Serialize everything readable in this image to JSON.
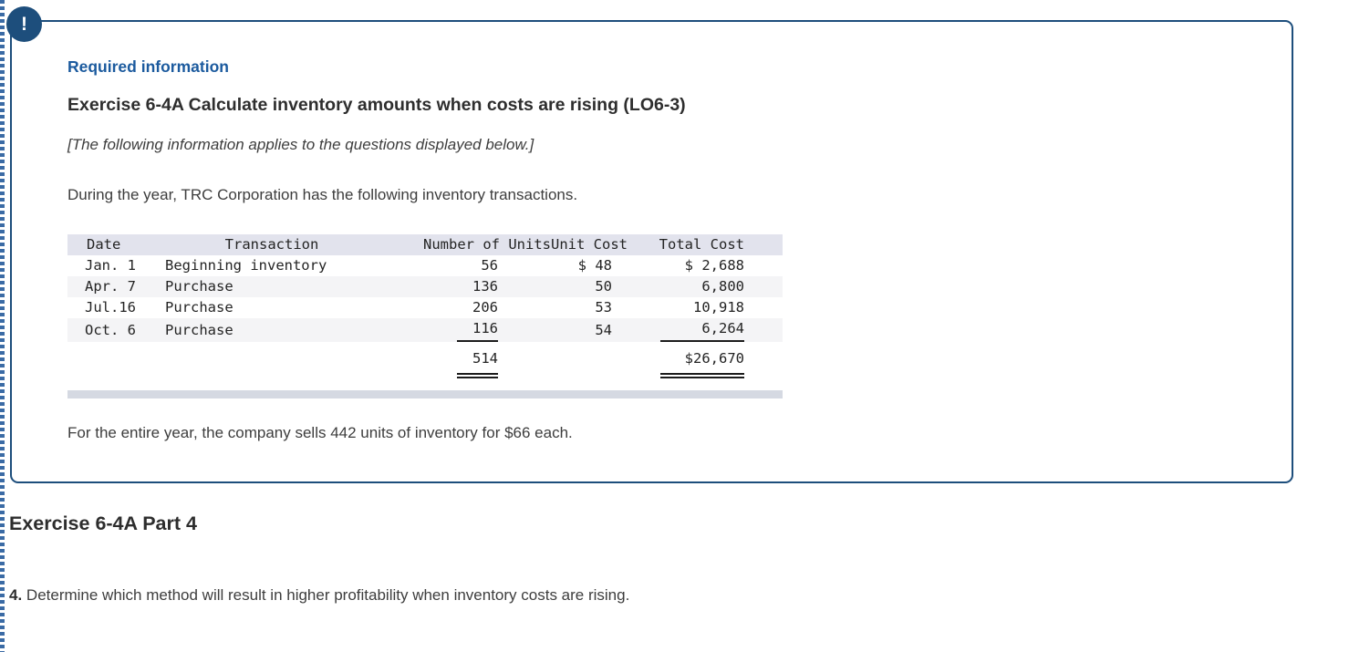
{
  "colors": {
    "accent_navy": "#1d4e7c",
    "label_blue": "#1b5a9e",
    "table_header_bg": "#e2e3ed",
    "table_stripe_bg": "#f4f4f6",
    "table_bottom_bar": "#d5d9e2",
    "perforation_blue": "#3b6ba5"
  },
  "callout": {
    "alert_icon_glyph": "!",
    "required_label": "Required information",
    "title": "Exercise 6-4A Calculate inventory amounts when costs are rising (LO6-3)",
    "note": "[The following information applies to the questions displayed below.]",
    "intro": "During the year, TRC Corporation has the following inventory transactions.",
    "sells_line": "For the entire year, the company sells 442 units of inventory for $66 each."
  },
  "inventory_table": {
    "headers": {
      "date": "Date",
      "transaction": "Transaction",
      "units": "Number of Units",
      "unit_cost": "Unit Cost",
      "total_cost": "Total Cost"
    },
    "rows": [
      {
        "date": "Jan. 1",
        "transaction": "Beginning inventory",
        "units": "56",
        "unit_cost": "$ 48",
        "total_cost": "$ 2,688"
      },
      {
        "date": "Apr. 7",
        "transaction": "Purchase",
        "units": "136",
        "unit_cost": "50",
        "total_cost": "6,800"
      },
      {
        "date": "Jul.16",
        "transaction": "Purchase",
        "units": "206",
        "unit_cost": "53",
        "total_cost": "10,918"
      },
      {
        "date": "Oct. 6",
        "transaction": "Purchase",
        "units": "116",
        "unit_cost": "54",
        "total_cost": "6,264"
      }
    ],
    "totals": {
      "units": "514",
      "total_cost": "$26,670"
    }
  },
  "part_section": {
    "heading": "Exercise 6-4A Part 4",
    "question_number": "4.",
    "question_text": " Determine which method will result in higher profitability when inventory costs are rising."
  }
}
